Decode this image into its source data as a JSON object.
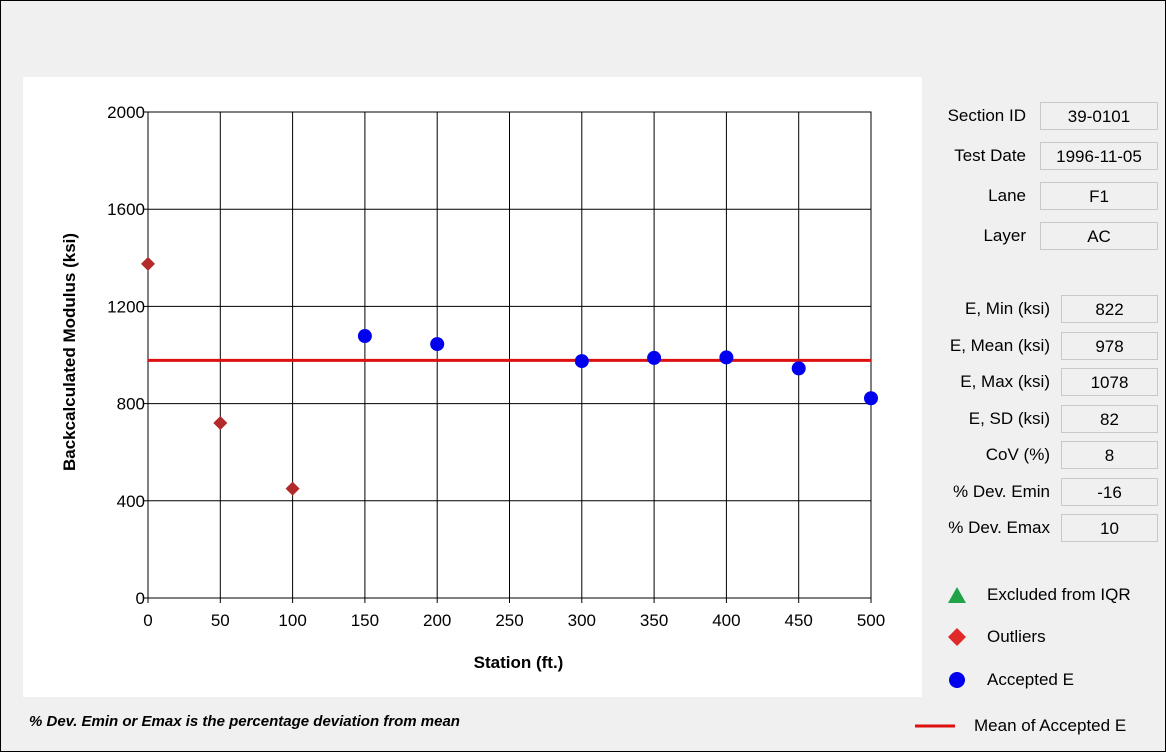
{
  "panel": {
    "fields": [
      {
        "label": "Section ID",
        "value": "39-0101"
      },
      {
        "label": "Test Date",
        "value": "1996-11-05"
      },
      {
        "label": "Lane",
        "value": "F1"
      },
      {
        "label": "Layer",
        "value": "AC"
      }
    ],
    "stats": [
      {
        "label": "E, Min (ksi)",
        "value": "822"
      },
      {
        "label": "E, Mean (ksi)",
        "value": "978"
      },
      {
        "label": "E, Max (ksi)",
        "value": "1078"
      },
      {
        "label": "E, SD (ksi)",
        "value": "82"
      },
      {
        "label": "CoV (%)",
        "value": "8"
      },
      {
        "label": "% Dev. Emin",
        "value": "-16"
      },
      {
        "label": "% Dev. Emax",
        "value": "10"
      }
    ]
  },
  "legend": {
    "excluded": {
      "label": "Excluded from IQR",
      "color": "#22a34a",
      "icon": "green-triangle"
    },
    "outliers": {
      "label": "Outliers",
      "color": "#e02a2a",
      "icon": "red-diamond"
    },
    "accepted": {
      "label": "Accepted E",
      "color": "#0000ee",
      "icon": "blue-circle"
    },
    "mean": {
      "label": "Mean of Accepted E",
      "color": "#dd1111",
      "icon": "red-line"
    }
  },
  "footnote": "% Dev. Emin or Emax is the percentage deviation from mean",
  "chart_data": {
    "type": "scatter",
    "xlabel": "Station (ft.)",
    "ylabel": "Backcalculated Modulus (ksi)",
    "xlim": [
      0,
      500
    ],
    "ylim": [
      0,
      2000
    ],
    "xticks": [
      0,
      50,
      100,
      150,
      200,
      250,
      300,
      350,
      400,
      450,
      500
    ],
    "yticks": [
      0,
      400,
      800,
      1200,
      1600,
      2000
    ],
    "grid": true,
    "series": [
      {
        "name": "Outliers",
        "marker": "diamond",
        "color": "#b22a2a",
        "x": [
          0,
          50,
          100
        ],
        "y": [
          1375,
          720,
          450
        ]
      },
      {
        "name": "Accepted E",
        "marker": "circle",
        "color": "#0000ee",
        "x": [
          150,
          200,
          300,
          350,
          400,
          450,
          500
        ],
        "y": [
          1078,
          1045,
          975,
          988,
          990,
          945,
          822
        ]
      }
    ],
    "mean_line": {
      "name": "Mean of Accepted E",
      "value": 978,
      "color": "#dd1111"
    }
  }
}
